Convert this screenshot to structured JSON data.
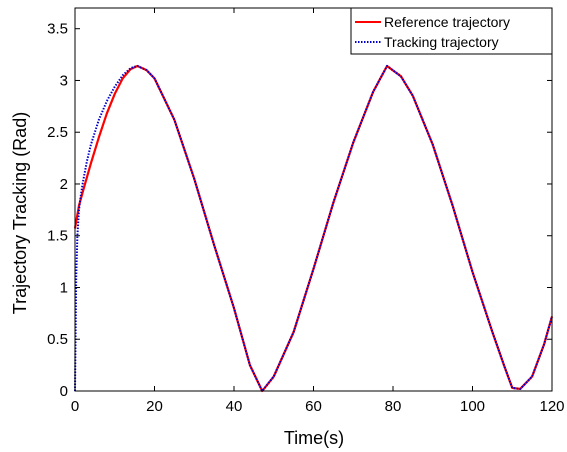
{
  "chart_data": {
    "type": "line",
    "title": "",
    "xlabel": "Time(s)",
    "ylabel": "Trajectory Tracking (Rad)",
    "xlim": [
      0,
      120
    ],
    "ylim": [
      0,
      3.7
    ],
    "xticks": [
      0,
      20,
      40,
      60,
      80,
      100,
      120
    ],
    "yticks": [
      0,
      0.5,
      1,
      1.5,
      2,
      2.5,
      3,
      3.5
    ],
    "xtick_labels": [
      "0",
      "20",
      "40",
      "60",
      "80",
      "100",
      "120"
    ],
    "ytick_labels": [
      "0",
      "0.5",
      "1",
      "1.5",
      "2",
      "2.5",
      "3",
      "3.5"
    ],
    "grid": false,
    "legend_position": "top-right",
    "series": [
      {
        "name": "Reference trajectory",
        "color": "#ff0000",
        "style": "solid",
        "x": [
          0,
          1,
          2,
          4,
          6,
          8,
          10,
          12,
          14,
          15.7,
          18,
          20,
          25,
          30,
          35,
          40,
          44,
          47.1,
          50,
          55,
          60,
          65,
          70,
          75,
          78.5,
          82,
          85,
          90,
          95,
          100,
          105,
          108,
          110,
          112,
          115,
          118,
          120
        ],
        "y": [
          1.57,
          1.79,
          1.93,
          2.2,
          2.45,
          2.68,
          2.87,
          3.02,
          3.11,
          3.14,
          3.1,
          3.02,
          2.62,
          2.05,
          1.41,
          0.8,
          0.25,
          0.0,
          0.14,
          0.57,
          1.18,
          1.82,
          2.4,
          2.89,
          3.14,
          3.04,
          2.85,
          2.38,
          1.79,
          1.15,
          0.57,
          0.24,
          0.03,
          0.02,
          0.14,
          0.45,
          0.72
        ]
      },
      {
        "name": "Tracking trajectory",
        "color": "#0000cc",
        "style": "dotted",
        "x": [
          0,
          0.3,
          0.6,
          1,
          1.5,
          2,
          3,
          4,
          6,
          8,
          10,
          12,
          14,
          15.7,
          18,
          20,
          25,
          30,
          35,
          40,
          44,
          47.1,
          50,
          55,
          60,
          65,
          70,
          75,
          78.5,
          82,
          85,
          90,
          95,
          100,
          105,
          108,
          110,
          112,
          115,
          118,
          120
        ],
        "y": [
          0.0,
          1.1,
          1.5,
          1.75,
          1.9,
          2.02,
          2.22,
          2.38,
          2.62,
          2.8,
          2.94,
          3.05,
          3.12,
          3.14,
          3.1,
          3.02,
          2.62,
          2.05,
          1.41,
          0.8,
          0.25,
          0.0,
          0.14,
          0.57,
          1.18,
          1.82,
          2.4,
          2.89,
          3.14,
          3.04,
          2.85,
          2.38,
          1.79,
          1.15,
          0.57,
          0.24,
          0.03,
          0.02,
          0.14,
          0.45,
          0.72
        ]
      }
    ]
  }
}
